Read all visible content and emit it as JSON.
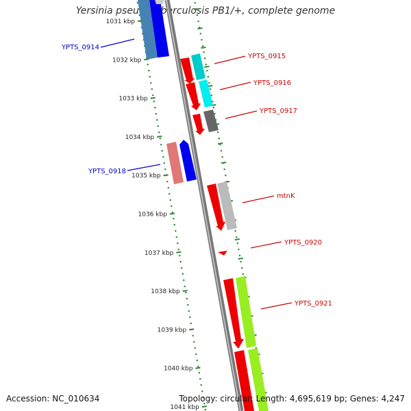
{
  "title": "Yersinia pseudotuberculosis PB1/+, complete genome",
  "accession": "Accession: NC_010634",
  "topology": "Topology: circular; Length: 4,695,619 bp; Genes: 4,247",
  "scale_unit": "kbp",
  "ticks": [
    {
      "kbp": 1031,
      "label": "1031 kbp"
    },
    {
      "kbp": 1032,
      "label": "1032 kbp"
    },
    {
      "kbp": 1033,
      "label": "1033 kbp"
    },
    {
      "kbp": 1034,
      "label": "1034 kbp"
    },
    {
      "kbp": 1035,
      "label": "1035 kbp"
    },
    {
      "kbp": 1036,
      "label": "1036 kbp"
    },
    {
      "kbp": 1037,
      "label": "1037 kbp"
    },
    {
      "kbp": 1038,
      "label": "1038 kbp"
    },
    {
      "kbp": 1039,
      "label": "1039 kbp"
    },
    {
      "kbp": 1040,
      "label": "1040 kbp"
    },
    {
      "kbp": 1041,
      "label": "1041 kbp"
    }
  ],
  "gene_labels": [
    {
      "name": "YPTS_0914",
      "color": "#0000cc",
      "side": "left"
    },
    {
      "name": "YPTS_0915",
      "color": "#cc0000",
      "side": "right"
    },
    {
      "name": "YPTS_0916",
      "color": "#cc0000",
      "side": "right"
    },
    {
      "name": "YPTS_0917",
      "color": "#cc0000",
      "side": "right"
    },
    {
      "name": "YPTS_0918",
      "color": "#0000cc",
      "side": "left"
    },
    {
      "name": "mtnK",
      "color": "#cc0000",
      "side": "right"
    },
    {
      "name": "YPTS_0920",
      "color": "#cc0000",
      "side": "right"
    },
    {
      "name": "YPTS_0921",
      "color": "#cc0000",
      "side": "right"
    }
  ],
  "colors": {
    "backbone": "#8c8c8c",
    "tick": "#2e8b2e",
    "gene_red": "#ee0000",
    "gene_blue": "#0000ee",
    "gene_cyan": "#00cccc",
    "gene_steel": "#4682b4",
    "gene_pink": "#e07878",
    "gene_gray": "#666666",
    "gene_lightgray": "#bbbbbb",
    "gene_lime": "#99ee22"
  }
}
